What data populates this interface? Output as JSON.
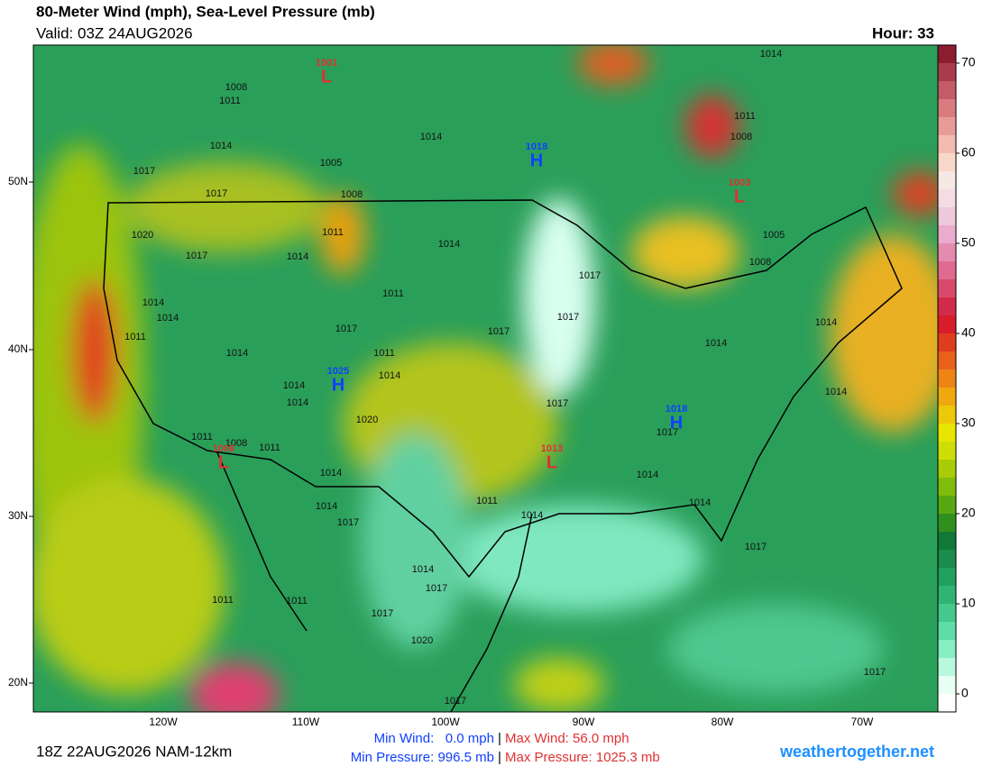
{
  "header": {
    "title": "80-Meter Wind (mph), Sea-Level Pressure (mb)",
    "valid": "Valid: 03Z 24AUG2026",
    "hour": "Hour: 33"
  },
  "colorbar": {
    "labels": [
      "70",
      "60",
      "50",
      "40",
      "30",
      "20",
      "10",
      "0"
    ]
  },
  "latitude_labels": [
    "50N",
    "40N",
    "30N",
    "20N"
  ],
  "longitude_labels": [
    "120W",
    "110W",
    "100W",
    "90W",
    "80W",
    "70W"
  ],
  "pressure_centers": [
    {
      "letter": "L",
      "value": "1001"
    },
    {
      "letter": "H",
      "value": "1018"
    },
    {
      "letter": "L",
      "value": "1003"
    },
    {
      "letter": "H",
      "value": "1025"
    },
    {
      "letter": "H",
      "value": "1018"
    },
    {
      "letter": "L",
      "value": "1013"
    },
    {
      "letter": "L",
      "value": "1006"
    }
  ],
  "isobar_labels": [
    "1008",
    "1011",
    "1014",
    "1011",
    "1008",
    "1014",
    "1014",
    "1017",
    "1005",
    "1017",
    "1008",
    "1020",
    "1011",
    "1014",
    "1005",
    "1017",
    "1014",
    "1008",
    "1017",
    "1011",
    "1014",
    "1014",
    "1017",
    "1017",
    "1011",
    "1017",
    "1014",
    "1014",
    "1014",
    "1011",
    "1014",
    "1014",
    "1017",
    "1014",
    "1014",
    "1020",
    "1011",
    "1008",
    "1011",
    "1017",
    "1014",
    "1014",
    "1011",
    "1014",
    "1014",
    "1014",
    "1017",
    "1017",
    "1014",
    "1017",
    "1011",
    "1011",
    "1017",
    "1020",
    "1017",
    "1017"
  ],
  "footer": {
    "run": "18Z 22AUG2026 NAM-12km",
    "min_wind": "Min Wind:   0.0 mph",
    "max_wind": "Max Wind: 56.0 mph",
    "min_pressure": "Min Pressure: 996.5 mb",
    "max_pressure": "Max Pressure: 1025.3 mb",
    "separator": "|",
    "site": "weathertogether.net"
  }
}
